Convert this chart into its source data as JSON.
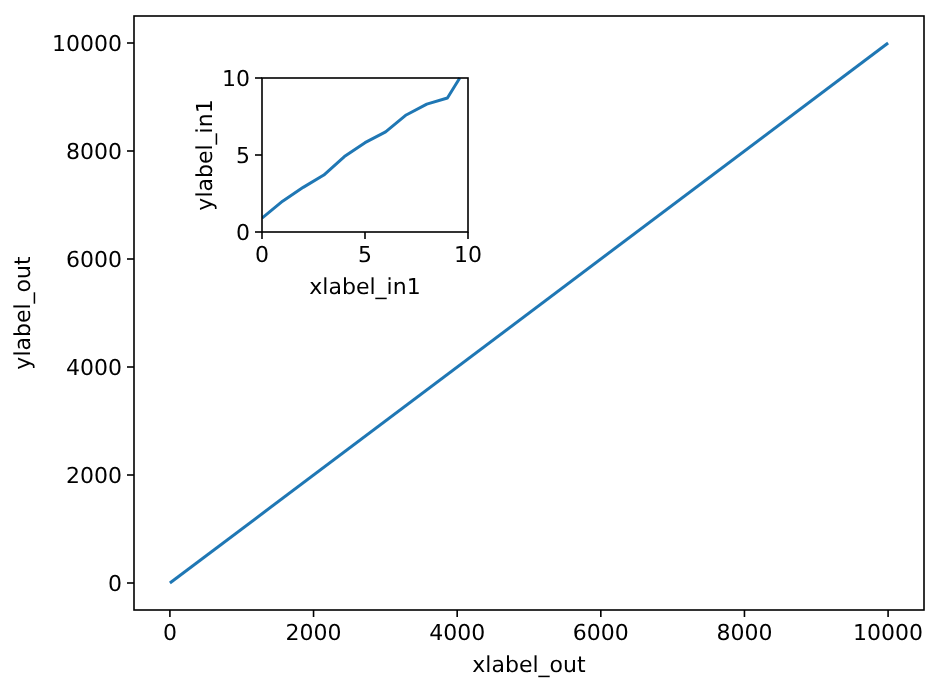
{
  "chart_data": [
    {
      "type": "line",
      "xlabel": "xlabel_out",
      "ylabel": "ylabel_out",
      "x": [
        0,
        10000
      ],
      "series": [
        {
          "color": "#1f77b4",
          "values": [
            0,
            10000
          ]
        }
      ],
      "xlim": [
        -500,
        10500
      ],
      "ylim": [
        -500,
        10500
      ],
      "xticks": [
        0,
        2000,
        4000,
        6000,
        8000,
        10000
      ],
      "yticks": [
        0,
        2000,
        4000,
        6000,
        8000,
        10000
      ],
      "grid": false
    },
    {
      "type": "line",
      "xlabel": "xlabel_in1",
      "ylabel": "ylabel_in1",
      "x": [
        0,
        1,
        2,
        3,
        4,
        5,
        6,
        7,
        8,
        9,
        9.6
      ],
      "series": [
        {
          "color": "#1f77b4",
          "values": [
            0.9,
            2.0,
            2.9,
            3.7,
            4.9,
            5.8,
            6.5,
            7.6,
            8.3,
            8.7,
            10
          ]
        }
      ],
      "xlim": [
        0,
        10
      ],
      "ylim": [
        0,
        10
      ],
      "xticks": [
        0,
        5,
        10
      ],
      "yticks": [
        0,
        5,
        10
      ],
      "grid": false
    }
  ]
}
